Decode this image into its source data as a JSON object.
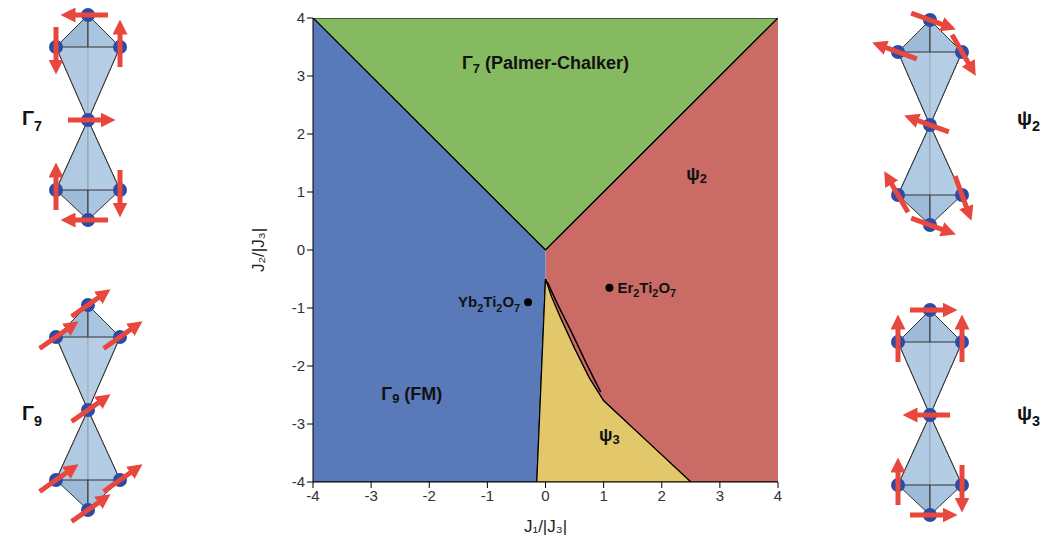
{
  "chart_data": {
    "type": "phase_diagram",
    "x_label": "J₁/|J₃|",
    "y_label": "J₂/|J₃|",
    "xlim": [
      -4,
      4
    ],
    "ylim": [
      -4,
      4
    ],
    "xticks": [
      -4,
      -3,
      -2,
      -1,
      0,
      1,
      2,
      3,
      4
    ],
    "yticks": [
      -4,
      -3,
      -2,
      -1,
      0,
      1,
      2,
      3,
      4
    ],
    "regions": [
      {
        "name": "Γ7 (Palmer-Chalker)",
        "color": "#86ba61",
        "x": [
          -4,
          0,
          4
        ],
        "lower": [
          4,
          0,
          4
        ],
        "upper": [
          4,
          4,
          4
        ]
      },
      {
        "name": "ψ2",
        "color": "#cb6b66",
        "x": [
          0,
          0.1,
          0.25,
          0.5,
          0.75,
          1.0,
          1.75,
          2.5,
          4
        ],
        "lower": [
          -0.5,
          -0.8,
          -1.15,
          -1.7,
          -2.2,
          -2.6,
          -3.3,
          -4,
          -4
        ],
        "upper": [
          0,
          0.1,
          0.25,
          0.5,
          0.75,
          1.0,
          1.75,
          2.5,
          4
        ]
      },
      {
        "name": "Γ9 (FM)",
        "color": "#5a79b8",
        "x": [
          -4,
          -0.15,
          0
        ],
        "lower": [
          -4,
          -4,
          -0.5
        ],
        "upper": [
          4,
          0.15,
          0
        ]
      },
      {
        "name": "ψ3",
        "color": "#e3c86b",
        "x": [
          -0.15,
          0,
          0.1,
          0.25,
          0.5,
          0.75,
          1.0,
          1.75,
          2.5
        ],
        "lower": [
          -4,
          -4,
          -4,
          -4,
          -4,
          -4,
          -4,
          -4,
          -4
        ],
        "upper": [
          -4,
          -0.5,
          -0.8,
          -1.15,
          -1.7,
          -2.2,
          -2.6,
          -3.3,
          -4
        ]
      }
    ],
    "boundaries": [
      {
        "x": [
          0.03,
          0.2,
          0.45,
          0.7,
          0.95
        ],
        "y": [
          -0.55,
          -0.92,
          -1.42,
          -1.95,
          -2.45
        ]
      }
    ],
    "points": [
      {
        "name": "Yb2Ti2O7",
        "x": -0.3,
        "y": -0.9
      },
      {
        "name": "Er2Ti2O7",
        "x": 1.1,
        "y": -0.65
      }
    ],
    "insets": [
      "Γ7",
      "Γ9",
      "ψ2",
      "ψ3"
    ]
  }
}
